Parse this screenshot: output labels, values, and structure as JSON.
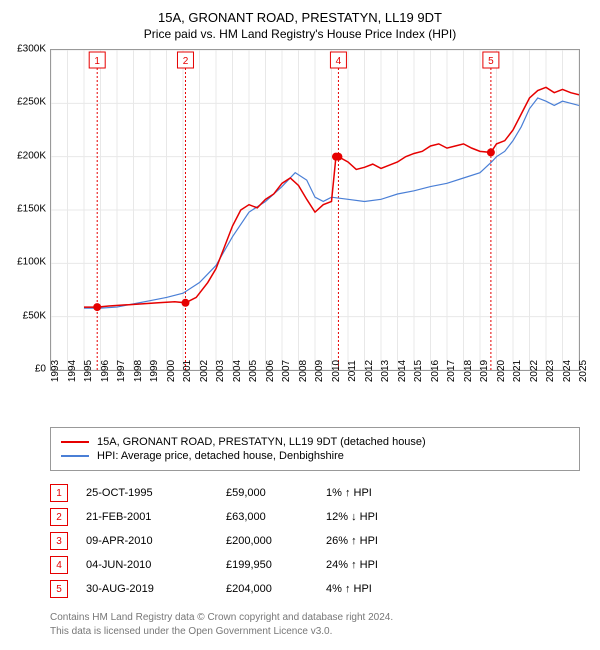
{
  "title": "15A, GRONANT ROAD, PRESTATYN, LL19 9DT",
  "subtitle": "Price paid vs. HM Land Registry's House Price Index (HPI)",
  "chart": {
    "type": "line",
    "background_color": "#ffffff",
    "grid_color": "#e8e8e8",
    "border_color": "#999999",
    "ylim": [
      0,
      300000
    ],
    "ytick_labels": [
      "£0",
      "£50K",
      "£100K",
      "£150K",
      "£200K",
      "£250K",
      "£300K"
    ],
    "ytick_values": [
      0,
      50000,
      100000,
      150000,
      200000,
      250000,
      300000
    ],
    "xlim": [
      1993,
      2025
    ],
    "xtick_labels": [
      "1993",
      "1994",
      "1995",
      "1996",
      "1997",
      "1998",
      "1999",
      "2000",
      "2001",
      "2002",
      "2003",
      "2004",
      "2005",
      "2006",
      "2007",
      "2008",
      "2009",
      "2010",
      "2011",
      "2012",
      "2013",
      "2014",
      "2015",
      "2016",
      "2017",
      "2018",
      "2019",
      "2020",
      "2021",
      "2022",
      "2023",
      "2024",
      "2025"
    ],
    "series": [
      {
        "name": "property",
        "color": "#e60000",
        "width": 1.5,
        "points": [
          [
            1995.0,
            59000
          ],
          [
            1995.8,
            59000
          ],
          [
            1996.5,
            60000
          ],
          [
            1997.5,
            61000
          ],
          [
            1998.5,
            62000
          ],
          [
            1999.5,
            63000
          ],
          [
            2000.5,
            64000
          ],
          [
            2001.15,
            63000
          ],
          [
            2001.8,
            68000
          ],
          [
            2002.5,
            82000
          ],
          [
            2003.0,
            95000
          ],
          [
            2003.5,
            115000
          ],
          [
            2004.0,
            135000
          ],
          [
            2004.5,
            150000
          ],
          [
            2005.0,
            155000
          ],
          [
            2005.5,
            152000
          ],
          [
            2006.0,
            160000
          ],
          [
            2006.5,
            165000
          ],
          [
            2007.0,
            175000
          ],
          [
            2007.5,
            180000
          ],
          [
            2008.0,
            173000
          ],
          [
            2008.5,
            160000
          ],
          [
            2009.0,
            148000
          ],
          [
            2009.5,
            155000
          ],
          [
            2010.0,
            158000
          ],
          [
            2010.27,
            200000
          ],
          [
            2010.42,
            199950
          ],
          [
            2011.0,
            195000
          ],
          [
            2011.5,
            188000
          ],
          [
            2012.0,
            190000
          ],
          [
            2012.5,
            193000
          ],
          [
            2013.0,
            189000
          ],
          [
            2013.5,
            192000
          ],
          [
            2014.0,
            195000
          ],
          [
            2014.5,
            200000
          ],
          [
            2015.0,
            203000
          ],
          [
            2015.5,
            205000
          ],
          [
            2016.0,
            210000
          ],
          [
            2016.5,
            212000
          ],
          [
            2017.0,
            208000
          ],
          [
            2017.5,
            210000
          ],
          [
            2018.0,
            212000
          ],
          [
            2018.5,
            208000
          ],
          [
            2019.0,
            205000
          ],
          [
            2019.66,
            204000
          ],
          [
            2020.0,
            212000
          ],
          [
            2020.5,
            215000
          ],
          [
            2021.0,
            225000
          ],
          [
            2021.5,
            240000
          ],
          [
            2022.0,
            255000
          ],
          [
            2022.5,
            262000
          ],
          [
            2023.0,
            265000
          ],
          [
            2023.5,
            260000
          ],
          [
            2024.0,
            263000
          ],
          [
            2024.5,
            260000
          ],
          [
            2025.0,
            258000
          ]
        ],
        "point_markers": [
          {
            "x": 1995.8,
            "y": 59000
          },
          {
            "x": 2001.15,
            "y": 63000
          },
          {
            "x": 2010.27,
            "y": 200000
          },
          {
            "x": 2010.42,
            "y": 199950
          },
          {
            "x": 2019.66,
            "y": 204000
          }
        ]
      },
      {
        "name": "hpi",
        "color": "#4a7fd6",
        "width": 1.2,
        "points": [
          [
            1995.0,
            58000
          ],
          [
            1996.0,
            58000
          ],
          [
            1997.0,
            59000
          ],
          [
            1998.0,
            62000
          ],
          [
            1999.0,
            65000
          ],
          [
            2000.0,
            68000
          ],
          [
            2001.0,
            72000
          ],
          [
            2002.0,
            82000
          ],
          [
            2003.0,
            98000
          ],
          [
            2004.0,
            125000
          ],
          [
            2005.0,
            148000
          ],
          [
            2006.0,
            158000
          ],
          [
            2007.0,
            172000
          ],
          [
            2007.8,
            185000
          ],
          [
            2008.5,
            178000
          ],
          [
            2009.0,
            162000
          ],
          [
            2009.5,
            158000
          ],
          [
            2010.0,
            162000
          ],
          [
            2011.0,
            160000
          ],
          [
            2012.0,
            158000
          ],
          [
            2013.0,
            160000
          ],
          [
            2014.0,
            165000
          ],
          [
            2015.0,
            168000
          ],
          [
            2016.0,
            172000
          ],
          [
            2017.0,
            175000
          ],
          [
            2018.0,
            180000
          ],
          [
            2019.0,
            185000
          ],
          [
            2019.7,
            195000
          ],
          [
            2020.0,
            200000
          ],
          [
            2020.5,
            205000
          ],
          [
            2021.0,
            215000
          ],
          [
            2021.5,
            228000
          ],
          [
            2022.0,
            245000
          ],
          [
            2022.5,
            255000
          ],
          [
            2023.0,
            252000
          ],
          [
            2023.5,
            248000
          ],
          [
            2024.0,
            252000
          ],
          [
            2024.5,
            250000
          ],
          [
            2025.0,
            248000
          ]
        ]
      }
    ],
    "vertical_markers": [
      {
        "num": "1",
        "x": 1995.8,
        "color": "#e60000"
      },
      {
        "num": "2",
        "x": 2001.15,
        "color": "#e60000"
      },
      {
        "num": "4",
        "x": 2010.42,
        "color": "#e60000"
      },
      {
        "num": "5",
        "x": 2019.66,
        "color": "#e60000"
      }
    ]
  },
  "legend": [
    {
      "color": "#e60000",
      "label": "15A, GRONANT ROAD, PRESTATYN, LL19 9DT (detached house)"
    },
    {
      "color": "#4a7fd6",
      "label": "HPI: Average price, detached house, Denbighshire"
    }
  ],
  "markers": [
    {
      "num": "1",
      "color": "#e60000",
      "date": "25-OCT-1995",
      "price": "£59,000",
      "pct": "1% ↑ HPI"
    },
    {
      "num": "2",
      "color": "#e60000",
      "date": "21-FEB-2001",
      "price": "£63,000",
      "pct": "12% ↓ HPI"
    },
    {
      "num": "3",
      "color": "#e60000",
      "date": "09-APR-2010",
      "price": "£200,000",
      "pct": "26% ↑ HPI"
    },
    {
      "num": "4",
      "color": "#e60000",
      "date": "04-JUN-2010",
      "price": "£199,950",
      "pct": "24% ↑ HPI"
    },
    {
      "num": "5",
      "color": "#e60000",
      "date": "30-AUG-2019",
      "price": "£204,000",
      "pct": "4% ↑ HPI"
    }
  ],
  "footer_line1": "Contains HM Land Registry data © Crown copyright and database right 2024.",
  "footer_line2": "This data is licensed under the Open Government Licence v3.0."
}
